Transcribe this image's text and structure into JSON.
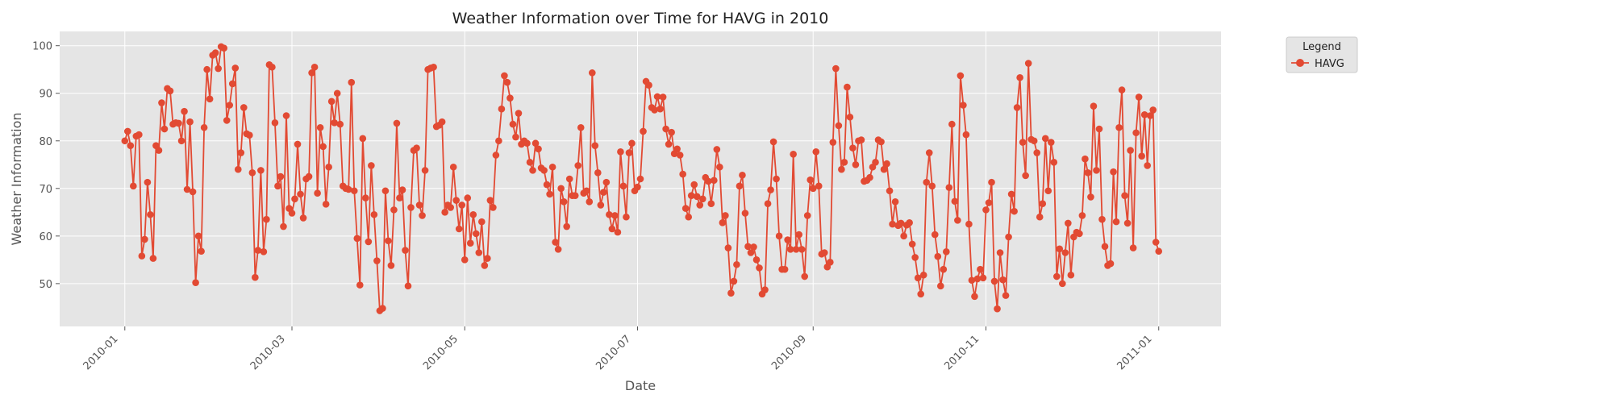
{
  "chart_data": {
    "type": "line",
    "title": "Weather Information over Time for HAVG in 2010",
    "xlabel": "Date",
    "ylabel": "Weather Information",
    "x_start": "2010-01-01",
    "x_end": "2010-12-31",
    "xlim": [
      "2009-12-09",
      "2011-01-23"
    ],
    "ylim": [
      41,
      103
    ],
    "x_ticks": [
      "2010-01-01",
      "2010-03-01",
      "2010-05-01",
      "2010-07-01",
      "2010-09-01",
      "2010-11-01",
      "2011-01-01"
    ],
    "x_tick_labels": [
      "2010-01",
      "2010-03",
      "2010-05",
      "2010-07",
      "2010-09",
      "2010-11",
      "2011-01"
    ],
    "y_ticks": [
      50,
      60,
      70,
      80,
      90,
      100
    ],
    "y_tick_labels": [
      "50",
      "60",
      "70",
      "80",
      "90",
      "100"
    ],
    "grid": true,
    "legend": {
      "title": "Legend",
      "placement": "outside-top-right"
    },
    "series": [
      {
        "name": "HAVG",
        "color": "#E24A33",
        "values": [
          80,
          82,
          79,
          70.5,
          81,
          81.3,
          55.8,
          59.3,
          71.3,
          64.5,
          55.3,
          79,
          78,
          88,
          82.5,
          91,
          90.5,
          83.5,
          83.8,
          83.7,
          80,
          86.2,
          69.8,
          84,
          69.3,
          50.2,
          60,
          56.8,
          82.8,
          95,
          88.8,
          98,
          98.5,
          95.2,
          99.8,
          99.5,
          84.3,
          87.5,
          92,
          95.3,
          74,
          77.5,
          87,
          81.5,
          81.2,
          73.3,
          51.3,
          57,
          73.8,
          56.7,
          63.5,
          96,
          95.5,
          83.8,
          70.5,
          72.5,
          62,
          85.3,
          65.8,
          64.8,
          67.8,
          79.3,
          68.8,
          63.8,
          72,
          72.5,
          94.3,
          95.5,
          69,
          82.8,
          78.8,
          66.7,
          74.5,
          88.3,
          83.8,
          90,
          83.5,
          70.5,
          70,
          69.8,
          92.3,
          69.5,
          59.5,
          49.7,
          80.5,
          68,
          58.8,
          74.8,
          64.5,
          54.8,
          44.3,
          44.8,
          69.5,
          59,
          53.8,
          65.5,
          83.7,
          68,
          69.7,
          57,
          49.5,
          66,
          78,
          78.5,
          66.5,
          64.3,
          73.8,
          95,
          95.3,
          95.5,
          83,
          83.3,
          84,
          65,
          66.5,
          66,
          74.5,
          67.5,
          61.5,
          66.5,
          55,
          68,
          58.5,
          64.5,
          60.5,
          56.5,
          63,
          53.8,
          55.3,
          67.5,
          66,
          77,
          80,
          86.7,
          93.7,
          92.3,
          89,
          83.5,
          80.8,
          85.8,
          79.3,
          80,
          79.5,
          75.5,
          73.8,
          79.5,
          78.3,
          74.3,
          73.8,
          70.8,
          68.8,
          74.5,
          58.7,
          57.2,
          70,
          67.2,
          62,
          72,
          68.5,
          68.5,
          74.8,
          82.8,
          69,
          69.5,
          67.2,
          94.3,
          79,
          73.3,
          66.5,
          69.2,
          71.3,
          64.5,
          61.5,
          64.3,
          60.8,
          77.7,
          70.5,
          64,
          77.5,
          79.5,
          69.5,
          70.3,
          72,
          82,
          92.5,
          91.7,
          87,
          86.5,
          89.3,
          86.7,
          89.2,
          82.5,
          79.3,
          81.8,
          77.3,
          78.3,
          77,
          73,
          65.8,
          64,
          68.5,
          70.8,
          68.3,
          66.5,
          67.8,
          72.3,
          71.5,
          66.8,
          71.7,
          78.2,
          74.5,
          62.8,
          64.3,
          57.5,
          48,
          50.5,
          54,
          70.5,
          72.8,
          64.8,
          57.8,
          56.5,
          57.7,
          55,
          53.3,
          47.8,
          48.7,
          66.8,
          69.7,
          79.8,
          72,
          60,
          53,
          53,
          59.2,
          57.2,
          77.2,
          57.2,
          60.3,
          57.2,
          51.5,
          64.3,
          71.8,
          70,
          77.7,
          70.5,
          56.2,
          56.5,
          53.5,
          54.5,
          79.7,
          95.2,
          83.2,
          74,
          75.5,
          91.3,
          85,
          78.5,
          75,
          80,
          80.2,
          71.5,
          71.7,
          72.3,
          74.5,
          75.5,
          80.2,
          79.8,
          74,
          75.2,
          69.5,
          62.5,
          67.2,
          62.2,
          62.7,
          60,
          62.3,
          62.8,
          58.3,
          55.5,
          51.2,
          47.8,
          51.8,
          71.3,
          77.5,
          70.5,
          60.3,
          55.7,
          49.5,
          53,
          56.7,
          70.2,
          83.5,
          67.3,
          63.3,
          93.7,
          87.5,
          81.3,
          62.5,
          50.7,
          47.3,
          51,
          53,
          51.2,
          65.5,
          67,
          71.3,
          50.5,
          44.7,
          56.5,
          50.8,
          47.5,
          59.8,
          68.8,
          65.2,
          87,
          93.3,
          79.7,
          72.7,
          96.3,
          80.3,
          80,
          77.5,
          64,
          66.8,
          80.5,
          69.5,
          79.7,
          75.5,
          51.5,
          57.3,
          50,
          56.5,
          62.7,
          51.8,
          59.8,
          60.8,
          60.5,
          64.3,
          76.2,
          73.3,
          68.2,
          87.3,
          73.8,
          82.5,
          63.5,
          57.8,
          53.8,
          54.2,
          73.5,
          63,
          82.8,
          90.7,
          68.5,
          62.7,
          78,
          57.5,
          81.7,
          89.2,
          76.8,
          85.5,
          74.8,
          85.3,
          86.5,
          58.7,
          56.8
        ]
      }
    ]
  }
}
